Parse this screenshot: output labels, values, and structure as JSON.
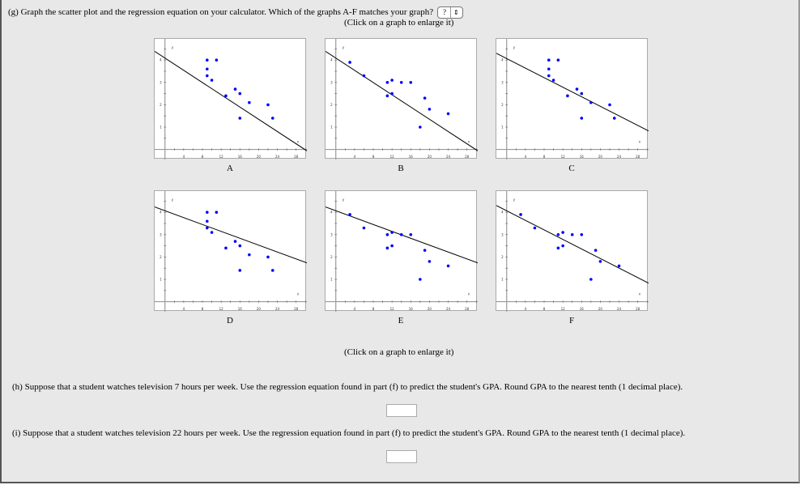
{
  "part_g": {
    "question": "(g) Graph the scatter plot and the regression equation on your calculator. Which of the graphs A-F matches your graph?",
    "select_value": "?",
    "hint_top": "(Click on a graph to enlarge it)",
    "hint_bottom": "(Click on a graph to enlarge it)"
  },
  "part_h": {
    "question": "(h) Suppose that a student watches television 7 hours per week. Use the regression equation found in part (f) to predict the student's GPA. Round GPA to the nearest tenth (1 decimal place).",
    "answer": ""
  },
  "part_i": {
    "question": "(i) Suppose that a student watches television 22 hours per week. Use the regression equation found in part (f) to predict the student's GPA. Round GPA to the nearest tenth (1 decimal place).",
    "answer": ""
  },
  "chart_data": [
    {
      "type": "scatter",
      "label": "A",
      "x_axis_label": "x",
      "y_axis_label": "y",
      "xlim": [
        -2.2,
        30.3
      ],
      "ylim": [
        -0.45,
        4.95
      ],
      "x_ticks": [
        4,
        8,
        12,
        16,
        20,
        24,
        28
      ],
      "y_ticks": [
        1,
        2,
        3,
        4
      ],
      "points": [
        [
          9,
          4.0
        ],
        [
          11,
          4.0
        ],
        [
          9,
          3.6
        ],
        [
          9,
          3.3
        ],
        [
          10,
          3.1
        ],
        [
          13,
          2.4
        ],
        [
          15,
          2.7
        ],
        [
          16,
          2.5
        ],
        [
          18,
          2.1
        ],
        [
          22,
          2.0
        ],
        [
          16,
          1.4
        ],
        [
          23,
          1.4
        ]
      ],
      "line": {
        "intercept": 4.09,
        "slope": -0.137
      },
      "point_color": "#0000ff",
      "line_color": "#000000"
    },
    {
      "type": "scatter",
      "label": "B",
      "x_axis_label": "x",
      "y_axis_label": "y",
      "xlim": [
        -2.2,
        30.3
      ],
      "ylim": [
        -0.45,
        4.95
      ],
      "x_ticks": [
        4,
        8,
        12,
        16,
        20,
        24,
        28
      ],
      "y_ticks": [
        1,
        2,
        3,
        4
      ],
      "points": [
        [
          3,
          3.9
        ],
        [
          6,
          3.3
        ],
        [
          11,
          3.0
        ],
        [
          12,
          3.1
        ],
        [
          14,
          3.0
        ],
        [
          16,
          3.0
        ],
        [
          11,
          2.4
        ],
        [
          12,
          2.5
        ],
        [
          19,
          2.3
        ],
        [
          20,
          1.8
        ],
        [
          24,
          1.6
        ],
        [
          18,
          1.0
        ]
      ],
      "line": {
        "intercept": 4.09,
        "slope": -0.137
      },
      "point_color": "#0000ff",
      "line_color": "#000000"
    },
    {
      "type": "scatter",
      "label": "C",
      "x_axis_label": "x",
      "y_axis_label": "y",
      "xlim": [
        -2.2,
        30.3
      ],
      "ylim": [
        -0.45,
        4.95
      ],
      "x_ticks": [
        4,
        8,
        12,
        16,
        20,
        24,
        28
      ],
      "y_ticks": [
        1,
        2,
        3,
        4
      ],
      "points": [
        [
          9,
          4.0
        ],
        [
          11,
          4.0
        ],
        [
          9,
          3.6
        ],
        [
          9,
          3.3
        ],
        [
          10,
          3.1
        ],
        [
          13,
          2.4
        ],
        [
          15,
          2.7
        ],
        [
          16,
          2.5
        ],
        [
          18,
          2.1
        ],
        [
          22,
          2.0
        ],
        [
          16,
          1.4
        ],
        [
          23,
          1.4
        ]
      ],
      "line": {
        "intercept": 4.07,
        "slope": -0.107
      },
      "point_color": "#0000ff",
      "line_color": "#000000"
    },
    {
      "type": "scatter",
      "label": "D",
      "x_axis_label": "x",
      "y_axis_label": "y",
      "xlim": [
        -2.2,
        30.3
      ],
      "ylim": [
        -0.45,
        4.95
      ],
      "x_ticks": [
        4,
        8,
        12,
        16,
        20,
        24,
        28
      ],
      "y_ticks": [
        1,
        2,
        3,
        4
      ],
      "points": [
        [
          9,
          4.0
        ],
        [
          11,
          4.0
        ],
        [
          9,
          3.6
        ],
        [
          9,
          3.3
        ],
        [
          10,
          3.1
        ],
        [
          13,
          2.4
        ],
        [
          15,
          2.7
        ],
        [
          16,
          2.5
        ],
        [
          18,
          2.1
        ],
        [
          22,
          2.0
        ],
        [
          16,
          1.4
        ],
        [
          23,
          1.4
        ]
      ],
      "line": {
        "intercept": 4.07,
        "slope": -0.077
      },
      "point_color": "#0000ff",
      "line_color": "#000000"
    },
    {
      "type": "scatter",
      "label": "E",
      "x_axis_label": "x",
      "y_axis_label": "y",
      "xlim": [
        -2.2,
        30.3
      ],
      "ylim": [
        -0.45,
        4.95
      ],
      "x_ticks": [
        4,
        8,
        12,
        16,
        20,
        24,
        28
      ],
      "y_ticks": [
        1,
        2,
        3,
        4
      ],
      "points": [
        [
          3,
          3.9
        ],
        [
          6,
          3.3
        ],
        [
          11,
          3.0
        ],
        [
          12,
          3.1
        ],
        [
          14,
          3.0
        ],
        [
          16,
          3.0
        ],
        [
          11,
          2.4
        ],
        [
          12,
          2.5
        ],
        [
          19,
          2.3
        ],
        [
          20,
          1.8
        ],
        [
          24,
          1.6
        ],
        [
          18,
          1.0
        ]
      ],
      "line": {
        "intercept": 4.07,
        "slope": -0.077
      },
      "point_color": "#0000ff",
      "line_color": "#000000"
    },
    {
      "type": "scatter",
      "label": "F",
      "x_axis_label": "x",
      "y_axis_label": "y",
      "xlim": [
        -2.2,
        30.3
      ],
      "ylim": [
        -0.45,
        4.95
      ],
      "x_ticks": [
        4,
        8,
        12,
        16,
        20,
        24,
        28
      ],
      "y_ticks": [
        1,
        2,
        3,
        4
      ],
      "points": [
        [
          3,
          3.9
        ],
        [
          6,
          3.3
        ],
        [
          11,
          3.0
        ],
        [
          12,
          3.1
        ],
        [
          14,
          3.0
        ],
        [
          16,
          3.0
        ],
        [
          11,
          2.4
        ],
        [
          12,
          2.5
        ],
        [
          19,
          2.3
        ],
        [
          20,
          1.8
        ],
        [
          24,
          1.6
        ],
        [
          18,
          1.0
        ]
      ],
      "line": {
        "intercept": 4.07,
        "slope": -0.107
      },
      "point_color": "#0000ff",
      "line_color": "#000000"
    }
  ]
}
